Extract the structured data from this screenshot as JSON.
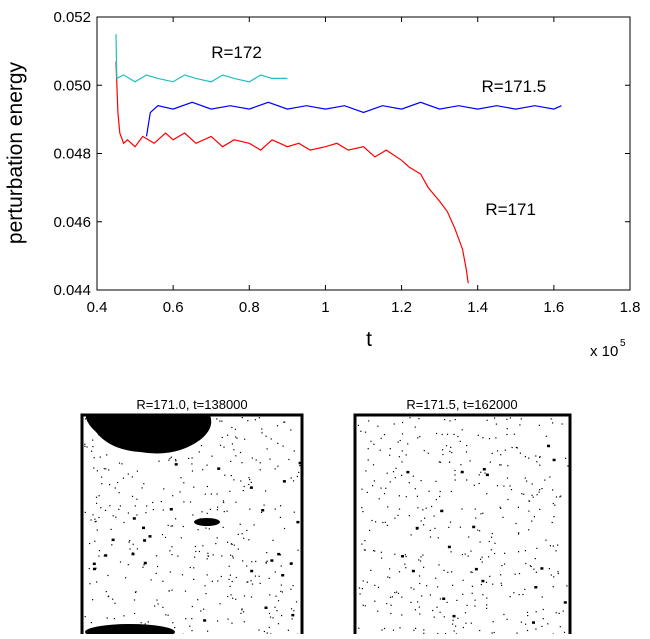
{
  "chart_data": {
    "type": "line",
    "y_label": "perturbation energy",
    "x_label": "t",
    "x_multiplier": "x 10",
    "x_multiplier_exponent": "5",
    "xlim": [
      0.4,
      1.8
    ],
    "xticks": [
      0.4,
      0.6,
      0.8,
      1,
      1.2,
      1.4,
      1.6,
      1.8
    ],
    "ylim": [
      0.044,
      0.052
    ],
    "yticks": [
      0.044,
      0.046,
      0.048,
      {
        "value": 0.05,
        "label": "0.050"
      },
      0.052
    ],
    "series": [
      {
        "name": "R=171",
        "color": "#ff0000",
        "x": [
          0.45,
          0.455,
          0.46,
          0.47,
          0.48,
          0.5,
          0.52,
          0.55,
          0.58,
          0.6,
          0.63,
          0.66,
          0.7,
          0.73,
          0.76,
          0.8,
          0.83,
          0.86,
          0.9,
          0.93,
          0.96,
          1.0,
          1.03,
          1.06,
          1.1,
          1.13,
          1.16,
          1.2,
          1.22,
          1.25,
          1.27,
          1.3,
          1.32,
          1.34,
          1.36,
          1.37,
          1.375
        ],
        "values": [
          0.0507,
          0.0492,
          0.0486,
          0.0483,
          0.0484,
          0.0482,
          0.0485,
          0.0483,
          0.0486,
          0.0484,
          0.0486,
          0.0483,
          0.0485,
          0.0482,
          0.0484,
          0.0483,
          0.0481,
          0.0484,
          0.0482,
          0.0483,
          0.0481,
          0.0482,
          0.0483,
          0.0481,
          0.0482,
          0.0479,
          0.0481,
          0.0478,
          0.0476,
          0.0474,
          0.047,
          0.0466,
          0.0463,
          0.0458,
          0.0452,
          0.0446,
          0.0442
        ]
      },
      {
        "name": "R=172",
        "color": "#1fbfbf",
        "x": [
          0.45,
          0.452,
          0.47,
          0.5,
          0.53,
          0.56,
          0.6,
          0.63,
          0.66,
          0.7,
          0.73,
          0.76,
          0.8,
          0.83,
          0.86,
          0.9
        ],
        "values": [
          0.0515,
          0.0502,
          0.0503,
          0.0501,
          0.0503,
          0.0502,
          0.0501,
          0.0503,
          0.0502,
          0.0501,
          0.0503,
          0.0502,
          0.0501,
          0.0503,
          0.0502,
          0.0502
        ]
      },
      {
        "name": "R=171.5",
        "color": "#0000ff",
        "x": [
          0.53,
          0.54,
          0.56,
          0.6,
          0.65,
          0.7,
          0.75,
          0.8,
          0.85,
          0.9,
          0.95,
          1.0,
          1.05,
          1.1,
          1.15,
          1.2,
          1.25,
          1.3,
          1.35,
          1.4,
          1.45,
          1.5,
          1.55,
          1.6,
          1.62
        ],
        "values": [
          0.0485,
          0.0492,
          0.0494,
          0.0493,
          0.0495,
          0.0493,
          0.0494,
          0.0493,
          0.0495,
          0.0493,
          0.0494,
          0.0493,
          0.0494,
          0.0492,
          0.0494,
          0.0493,
          0.0495,
          0.0493,
          0.0494,
          0.0493,
          0.0494,
          0.0493,
          0.0494,
          0.0493,
          0.0494
        ]
      }
    ]
  },
  "panels": [
    {
      "title": "R=171.0, t=138000"
    },
    {
      "title": "R=171.5, t=162000"
    }
  ]
}
